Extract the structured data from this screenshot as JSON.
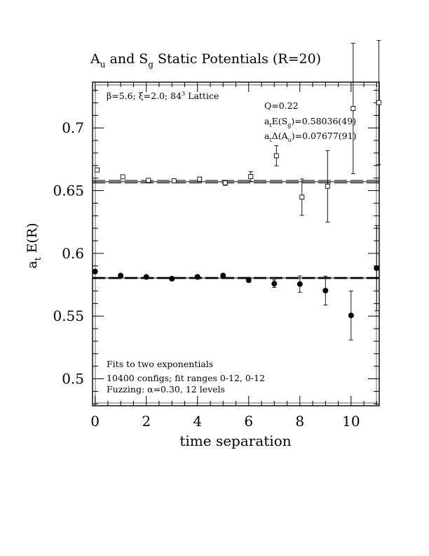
{
  "chart_data": {
    "type": "scatter",
    "title": "A_u and S_g Static Potentials (R=20)",
    "xlabel": "time separation",
    "ylabel": "a_t E(R)",
    "xlim": [
      -0.1,
      11.1
    ],
    "ylim": [
      0.4785,
      0.7365
    ],
    "x_ticks": [
      0,
      2,
      4,
      6,
      8,
      10
    ],
    "y_ticks": [
      0.5,
      0.55,
      0.6,
      0.65,
      0.7
    ],
    "x_tick_labels": [
      "0",
      "2",
      "4",
      "6",
      "8",
      "10"
    ],
    "y_tick_labels": [
      "0.5",
      "0.55",
      "0.6",
      "0.65",
      "0.7"
    ],
    "grid": false,
    "annotations": {
      "top_left": "β=5.6; ξ=2.0; 84³ Lattice",
      "q": "Q=0.22",
      "e_sg": "a_tE(S_g)=0.58036(49)",
      "delta_au": "a_tΔ(A_u)=0.07677(91)",
      "fit1": "Fits to two exponentials",
      "fit2": "10400 configs; fit ranges 0-12, 0-12",
      "fit3": "Fuzzing: α=0.30, 12 levels"
    },
    "series": [
      {
        "marker": "filled-circle",
        "points": [
          {
            "x": 0,
            "y": 0.5855,
            "err": 0.0015
          },
          {
            "x": 1,
            "y": 0.5823,
            "err": 0.0012
          },
          {
            "x": 2,
            "y": 0.5812,
            "err": 0.0012
          },
          {
            "x": 3,
            "y": 0.5798,
            "err": 0.0015
          },
          {
            "x": 4,
            "y": 0.5812,
            "err": 0.0015
          },
          {
            "x": 5,
            "y": 0.5823,
            "err": 0.0015
          },
          {
            "x": 6,
            "y": 0.5788,
            "err": 0.002
          },
          {
            "x": 7,
            "y": 0.5758,
            "err": 0.003
          },
          {
            "x": 8,
            "y": 0.5755,
            "err": 0.0065
          },
          {
            "x": 9,
            "y": 0.5703,
            "err": 0.0115
          },
          {
            "x": 10,
            "y": 0.5505,
            "err": 0.0195
          },
          {
            "x": 11,
            "y": 0.5882,
            "err": 0.034
          }
        ]
      },
      {
        "marker": "open-square",
        "points": [
          {
            "x": 0,
            "y": 0.6665,
            "err": 0.0015
          },
          {
            "x": 1,
            "y": 0.661,
            "err": 0.0015
          },
          {
            "x": 2,
            "y": 0.6582,
            "err": 0.001
          },
          {
            "x": 3,
            "y": 0.6578,
            "err": 0.001
          },
          {
            "x": 4,
            "y": 0.6592,
            "err": 0.001
          },
          {
            "x": 5,
            "y": 0.6562,
            "err": 0.002
          },
          {
            "x": 6,
            "y": 0.6612,
            "err": 0.004
          },
          {
            "x": 7,
            "y": 0.6778,
            "err": 0.008
          },
          {
            "x": 8,
            "y": 0.6448,
            "err": 0.0145
          },
          {
            "x": 9,
            "y": 0.6535,
            "err": 0.0285
          },
          {
            "x": 10,
            "y": 0.7155,
            "err": 0.052
          },
          {
            "x": 11,
            "y": 0.7202,
            "err": 0.0495
          }
        ]
      }
    ],
    "fit_lines": [
      {
        "y": 0.58036,
        "band": 0.00049
      },
      {
        "y": 0.65713,
        "band": 0.00103
      }
    ]
  }
}
